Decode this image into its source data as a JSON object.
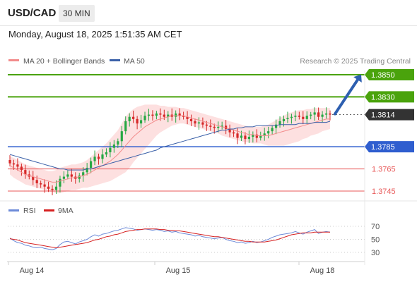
{
  "header": {
    "pair": "USD/CAD",
    "timeframe": "30 MIN",
    "timestamp": "Monday, August 18, 2025 1:51:35 AM CET"
  },
  "legend": {
    "ma20": "MA 20 + Bollinger Bands",
    "ma50": "MA 50",
    "credit": "Research © 2025 Trading Central"
  },
  "rsi_legend": {
    "rsi": "RSI",
    "ma9": "9MA"
  },
  "colors": {
    "up": "#27a844",
    "down": "#d62828",
    "bands": "#fde0e0",
    "ma20": "#f28b8b",
    "ma50": "#3a60a8",
    "resistance": "#4aa30c",
    "support": "#2f5ecf",
    "target_line": "#e85a5a",
    "rsi": "#6c8ad8",
    "rsi_ma": "#d62020"
  },
  "chart_data": [
    {
      "type": "candlestick",
      "title": "USD/CAD 30 MIN",
      "x_labels": [
        "Aug 14",
        "Aug 15",
        "Aug 18"
      ],
      "ylim": [
        1.3735,
        1.386
      ],
      "current_price": 1.3814,
      "levels": [
        {
          "label": "1.3850",
          "value": 1.385,
          "kind": "resistance",
          "style": "solid"
        },
        {
          "label": "1.3830",
          "value": 1.383,
          "kind": "resistance",
          "style": "solid"
        },
        {
          "label": "1.3814",
          "value": 1.3814,
          "kind": "current",
          "style": "dotted"
        },
        {
          "label": "1.3785",
          "value": 1.3785,
          "kind": "support",
          "style": "solid"
        },
        {
          "label": "1.3765",
          "value": 1.3765,
          "kind": "target",
          "style": "thin"
        },
        {
          "label": "1.3745",
          "value": 1.3745,
          "kind": "target",
          "style": "thin"
        }
      ],
      "arrow": {
        "from": 1.3814,
        "to": 1.3848,
        "direction": "up"
      },
      "price_path": [
        1.377,
        1.3769,
        1.3767,
        1.3764,
        1.376,
        1.3758,
        1.3755,
        1.3752,
        1.3751,
        1.3749,
        1.3747,
        1.3746,
        1.3749,
        1.3756,
        1.3758,
        1.376,
        1.3758,
        1.3756,
        1.3759,
        1.3762,
        1.3766,
        1.3772,
        1.3776,
        1.3774,
        1.3778,
        1.378,
        1.3784,
        1.3787,
        1.379,
        1.3799,
        1.3808,
        1.3812,
        1.381,
        1.3806,
        1.3809,
        1.3813,
        1.3814,
        1.3813,
        1.3815,
        1.3814,
        1.3812,
        1.3814,
        1.3812,
        1.3815,
        1.3813,
        1.3812,
        1.381,
        1.3808,
        1.3806,
        1.3807,
        1.3805,
        1.3804,
        1.3803,
        1.3802,
        1.3803,
        1.3804,
        1.3801,
        1.3798,
        1.3797,
        1.3793,
        1.3795,
        1.3792,
        1.3794,
        1.3796,
        1.3793,
        1.3795,
        1.3797,
        1.3799,
        1.3802,
        1.3805,
        1.3808,
        1.381,
        1.3811,
        1.3812,
        1.3813,
        1.3812,
        1.381,
        1.3813,
        1.3814,
        1.3816,
        1.3812,
        1.3814,
        1.3815,
        1.3814
      ],
      "ma20": [
        1.3768,
        1.3766,
        1.3764,
        1.3762,
        1.376,
        1.3759,
        1.3758,
        1.3757,
        1.3756,
        1.3755,
        1.3754,
        1.3753,
        1.3753,
        1.3754,
        1.3755,
        1.3756,
        1.3757,
        1.3757,
        1.3758,
        1.3759,
        1.376,
        1.3762,
        1.3764,
        1.3766,
        1.3768,
        1.377,
        1.3772,
        1.3775,
        1.3778,
        1.3782,
        1.3786,
        1.379,
        1.3794,
        1.3797,
        1.38,
        1.3803,
        1.3805,
        1.3807,
        1.3809,
        1.381,
        1.3811,
        1.3812,
        1.3813,
        1.3813,
        1.3813,
        1.3813,
        1.3812,
        1.3811,
        1.381,
        1.3809,
        1.3808,
        1.3807,
        1.3806,
        1.3805,
        1.3804,
        1.3803,
        1.3802,
        1.3801,
        1.38,
        1.3799,
        1.3798,
        1.3797,
        1.3796,
        1.3796,
        1.3795,
        1.3795,
        1.3795,
        1.3795,
        1.3796,
        1.3797,
        1.3798,
        1.3799,
        1.38,
        1.3801,
        1.3802,
        1.3803,
        1.3804,
        1.3805,
        1.3806,
        1.3807,
        1.3808,
        1.3809,
        1.381,
        1.381
      ],
      "bb_upper": [
        1.3776,
        1.3775,
        1.3773,
        1.3771,
        1.3769,
        1.3768,
        1.3767,
        1.3766,
        1.3765,
        1.3764,
        1.3763,
        1.3763,
        1.3764,
        1.3766,
        1.3767,
        1.3768,
        1.3769,
        1.3769,
        1.377,
        1.3771,
        1.3773,
        1.3776,
        1.3779,
        1.3782,
        1.3785,
        1.3788,
        1.3792,
        1.3796,
        1.38,
        1.3806,
        1.3812,
        1.3816,
        1.3819,
        1.3821,
        1.3822,
        1.3823,
        1.3823,
        1.3823,
        1.3823,
        1.3822,
        1.3822,
        1.3821,
        1.3821,
        1.3821,
        1.382,
        1.382,
        1.3819,
        1.3818,
        1.3817,
        1.3816,
        1.3815,
        1.3814,
        1.3813,
        1.3812,
        1.3811,
        1.381,
        1.3809,
        1.3808,
        1.3807,
        1.3806,
        1.3805,
        1.3804,
        1.3803,
        1.3803,
        1.3803,
        1.3803,
        1.3804,
        1.3805,
        1.3807,
        1.3809,
        1.3811,
        1.3813,
        1.3815,
        1.3816,
        1.3817,
        1.3818,
        1.3818,
        1.3819,
        1.3819,
        1.382,
        1.382,
        1.382,
        1.382,
        1.382
      ],
      "bb_lower": [
        1.376,
        1.3757,
        1.3755,
        1.3753,
        1.3751,
        1.375,
        1.3749,
        1.3748,
        1.3747,
        1.3746,
        1.3745,
        1.3744,
        1.3743,
        1.3743,
        1.3744,
        1.3745,
        1.3746,
        1.3746,
        1.3747,
        1.3748,
        1.3748,
        1.3749,
        1.375,
        1.3751,
        1.3752,
        1.3753,
        1.3754,
        1.3756,
        1.3758,
        1.376,
        1.3762,
        1.3766,
        1.3771,
        1.3775,
        1.3779,
        1.3783,
        1.3787,
        1.3791,
        1.3795,
        1.3798,
        1.38,
        1.3802,
        1.3804,
        1.3805,
        1.3806,
        1.3806,
        1.3805,
        1.3804,
        1.3803,
        1.3802,
        1.3801,
        1.38,
        1.3799,
        1.3798,
        1.3797,
        1.3795,
        1.3794,
        1.3793,
        1.3792,
        1.3791,
        1.379,
        1.3789,
        1.3789,
        1.3788,
        1.3788,
        1.3788,
        1.3787,
        1.3786,
        1.3786,
        1.3786,
        1.3786,
        1.3786,
        1.3787,
        1.3788,
        1.3789,
        1.379,
        1.3792,
        1.3793,
        1.3795,
        1.3796,
        1.3797,
        1.3799,
        1.38,
        1.3801
      ],
      "ma50": [
        1.3778,
        1.3777,
        1.3776,
        1.3775,
        1.3774,
        1.3773,
        1.3772,
        1.3771,
        1.377,
        1.3769,
        1.3768,
        1.3767,
        1.3766,
        1.3765,
        1.3765,
        1.3764,
        1.3764,
        1.3764,
        1.3764,
        1.3764,
        1.3765,
        1.3765,
        1.3766,
        1.3767,
        1.3768,
        1.3769,
        1.377,
        1.3771,
        1.3772,
        1.3773,
        1.3774,
        1.3775,
        1.3776,
        1.3777,
        1.3778,
        1.3779,
        1.378,
        1.3781,
        1.3782,
        1.3784,
        1.3785,
        1.3786,
        1.3787,
        1.3788,
        1.3789,
        1.379,
        1.3791,
        1.3792,
        1.3793,
        1.3794,
        1.3795,
        1.3796,
        1.3797,
        1.3798,
        1.3799,
        1.38,
        1.38,
        1.3801,
        1.3801,
        1.3802,
        1.3802,
        1.3803,
        1.3803,
        1.3803,
        1.3804,
        1.3804,
        1.3804,
        1.3804,
        1.3804,
        1.3804,
        1.3805,
        1.3805,
        1.3805,
        1.3805,
        1.3805,
        1.3806,
        1.3806,
        1.3806,
        1.3806,
        1.3807,
        1.3807,
        1.3807,
        1.3807,
        1.3808
      ]
    },
    {
      "type": "line",
      "title": "RSI",
      "ylim": [
        20,
        80
      ],
      "y_ticks": [
        70,
        50,
        30
      ],
      "series": [
        {
          "name": "RSI",
          "values": [
            52,
            48,
            45,
            44,
            41,
            40,
            38,
            37,
            38,
            36,
            35,
            34,
            36,
            42,
            46,
            47,
            45,
            43,
            46,
            48,
            50,
            54,
            57,
            55,
            58,
            59,
            61,
            63,
            64,
            66,
            68,
            67,
            66,
            64,
            65,
            66,
            65,
            64,
            65,
            64,
            62,
            63,
            61,
            62,
            60,
            59,
            58,
            57,
            55,
            56,
            54,
            53,
            52,
            51,
            52,
            53,
            50,
            48,
            47,
            45,
            46,
            44,
            45,
            47,
            45,
            46,
            48,
            50,
            53,
            55,
            57,
            58,
            59,
            60,
            62,
            60,
            58,
            61,
            63,
            65,
            59,
            61,
            62,
            61
          ]
        },
        {
          "name": "9MA",
          "values": [
            51,
            50,
            49,
            47,
            45,
            44,
            43,
            42,
            41,
            40,
            39,
            38,
            37,
            38,
            39,
            40,
            41,
            42,
            43,
            44,
            45,
            47,
            49,
            50,
            52,
            54,
            55,
            57,
            58,
            60,
            62,
            63,
            64,
            65,
            65,
            66,
            66,
            66,
            66,
            65,
            65,
            64,
            64,
            63,
            63,
            62,
            61,
            60,
            59,
            58,
            57,
            56,
            55,
            54,
            54,
            53,
            52,
            51,
            50,
            49,
            48,
            47,
            47,
            46,
            46,
            46,
            46,
            47,
            48,
            49,
            51,
            53,
            55,
            57,
            58,
            59,
            60,
            60,
            60,
            61,
            61,
            61,
            61,
            61
          ]
        }
      ]
    }
  ]
}
